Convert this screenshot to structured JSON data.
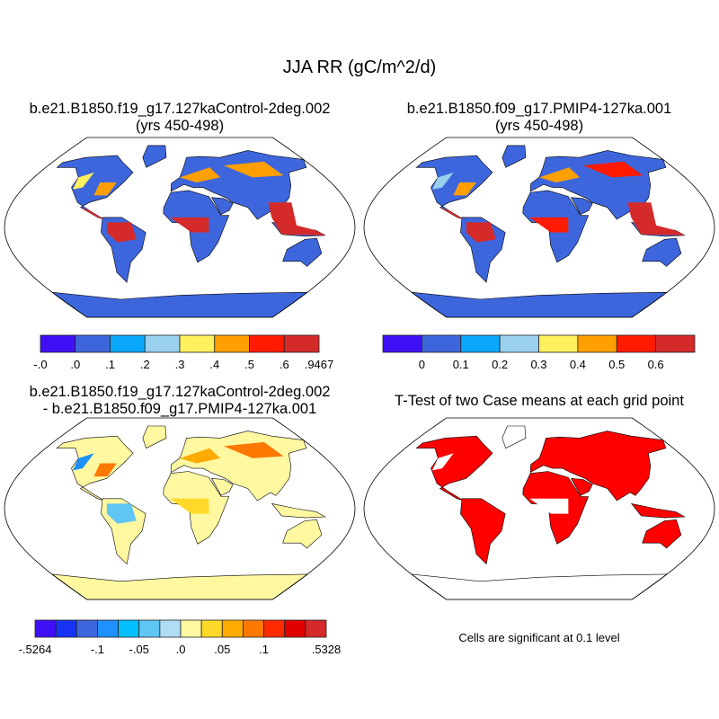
{
  "title": "JJA RR (gC/m^2/d)",
  "panels": [
    {
      "title_line1": "b.e21.B1850.f19_g17.127kaControl-2deg.002",
      "title_line2": "(yrs 450-498)"
    },
    {
      "title_line1": "b.e21.B1850.f09_g17.PMIP4-127ka.001",
      "title_line2": "(yrs 450-498)"
    },
    {
      "title_line1": "b.e21.B1850.f19_g17.127kaControl-2deg.002",
      "title_line2": "- b.e21.B1850.f09_g17.PMIP4-127ka.001"
    },
    {
      "title_line1": "T-Test of two Case means at each grid point"
    }
  ],
  "colorbars": [
    {
      "colors": [
        "#3f10f5",
        "#3e66dc",
        "#0aa8fb",
        "#98d0ee",
        "#fff05e",
        "#ff9f00",
        "#ff1a00",
        "#d42a2a"
      ],
      "labels": [
        "-.0",
        ".0",
        ".1",
        ".2",
        ".3",
        ".4",
        ".5",
        ".6",
        ".9467"
      ]
    },
    {
      "colors": [
        "#3f10f5",
        "#3e66dc",
        "#0aa8fb",
        "#98d0ee",
        "#fff05e",
        "#ff9f00",
        "#ff1a00",
        "#d42a2a"
      ],
      "labels": [
        "0",
        "0.1",
        "0.2",
        "0.3",
        "0.4",
        "0.5",
        "0.6"
      ]
    },
    {
      "colors": [
        "#3f10f5",
        "#1733f5",
        "#3e66dc",
        "#1e90ff",
        "#00bfff",
        "#5fc5f5",
        "#b0dcf5",
        "#fff8a0",
        "#ffd82a",
        "#ffab00",
        "#ff7800",
        "#ff2a00",
        "#e00000",
        "#d42a2a"
      ],
      "labels": [
        "-.5264",
        "-.1",
        "-.05",
        ".0",
        ".05",
        ".1",
        ".5328"
      ]
    }
  ],
  "significance_note": "Cells are significant at 0.1 level",
  "colors": {
    "land_base_mean": "#3e66dc",
    "land_base_diff": "#fff8a0",
    "significant": "#ff0000",
    "high": "#d42a2a"
  }
}
